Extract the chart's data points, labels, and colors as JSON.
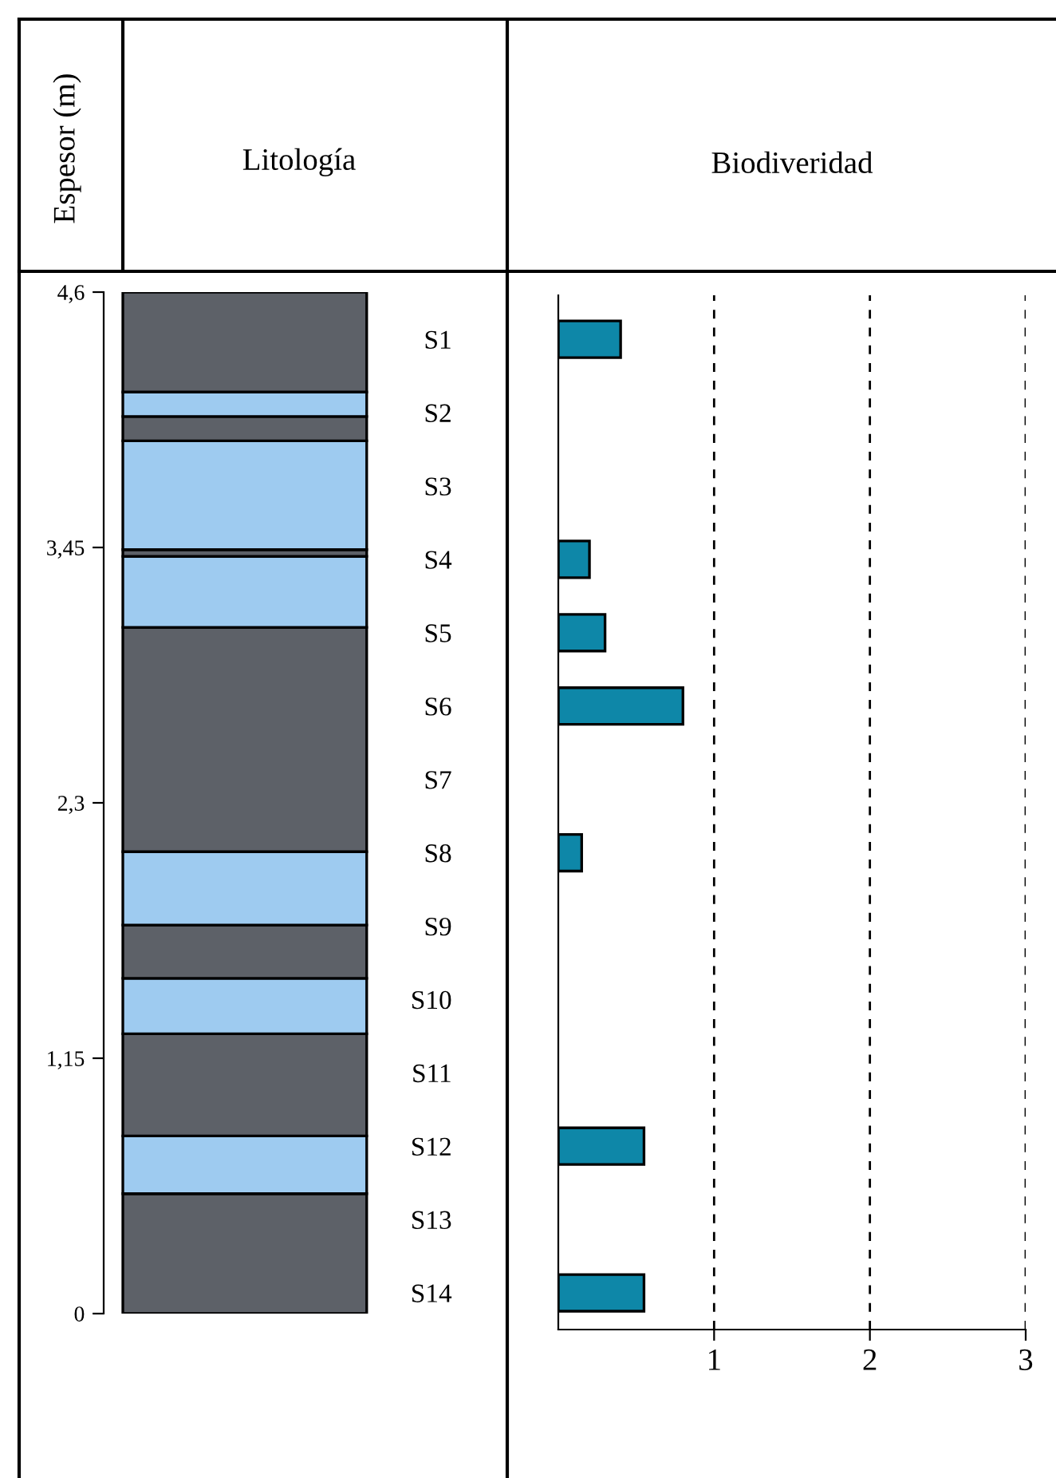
{
  "chart_data": [
    {
      "type": "bar",
      "stacked": true,
      "title": "Litología",
      "ylabel": "Espesor (m)",
      "categories": [
        null
      ],
      "ylim": [
        0,
        4.6
      ],
      "yticks": [
        {
          "value": 0,
          "label": "0"
        },
        {
          "value": 1.15,
          "label": "1,15"
        },
        {
          "value": 2.3,
          "label": "2,3"
        },
        {
          "value": 3.45,
          "label": "3,45"
        },
        {
          "value": 4.6,
          "label": "4,6"
        }
      ],
      "tick_labels": "y",
      "grid": false,
      "legend": false,
      "series": [
        {
          "color": "#5d6168",
          "values": [
            0.54
          ]
        },
        {
          "color": "#9ecbf0",
          "values": [
            0.26
          ]
        },
        {
          "color": "#5d6168",
          "values": [
            0.46
          ]
        },
        {
          "color": "#9ecbf0",
          "values": [
            0.25
          ]
        },
        {
          "color": "#5d6168",
          "values": [
            0.24
          ]
        },
        {
          "color": "#9ecbf0",
          "values": [
            0.33
          ]
        },
        {
          "color": "#5d6168",
          "values": [
            1.01
          ]
        },
        {
          "color": "#9ecbf0",
          "values": [
            0.32
          ]
        },
        {
          "color": "#5d6168",
          "values": [
            0.03
          ]
        },
        {
          "color": "#9ecbf0",
          "values": [
            0.49
          ]
        },
        {
          "color": "#5d6168",
          "values": [
            0.11
          ]
        },
        {
          "color": "#9ecbf0",
          "values": [
            0.11
          ]
        },
        {
          "color": "#5d6168",
          "values": [
            0.45
          ]
        }
      ]
    },
    {
      "type": "bar",
      "orientation": "horizontal",
      "title": "Biodiveridad",
      "categories": [
        "S1",
        "S2",
        "S3",
        "S4",
        "S5",
        "S6",
        "S7",
        "S8",
        "S9",
        "S10",
        "S11",
        "S12",
        "S13",
        "S14"
      ],
      "values": [
        0.4,
        null,
        null,
        0.2,
        0.3,
        0.8,
        null,
        0.15,
        null,
        null,
        null,
        0.55,
        null,
        0.55
      ],
      "color": "#0e87a8",
      "xlim": [
        0,
        3
      ],
      "xticks": [
        1,
        2,
        3
      ],
      "grid": "x",
      "legend": false
    }
  ]
}
